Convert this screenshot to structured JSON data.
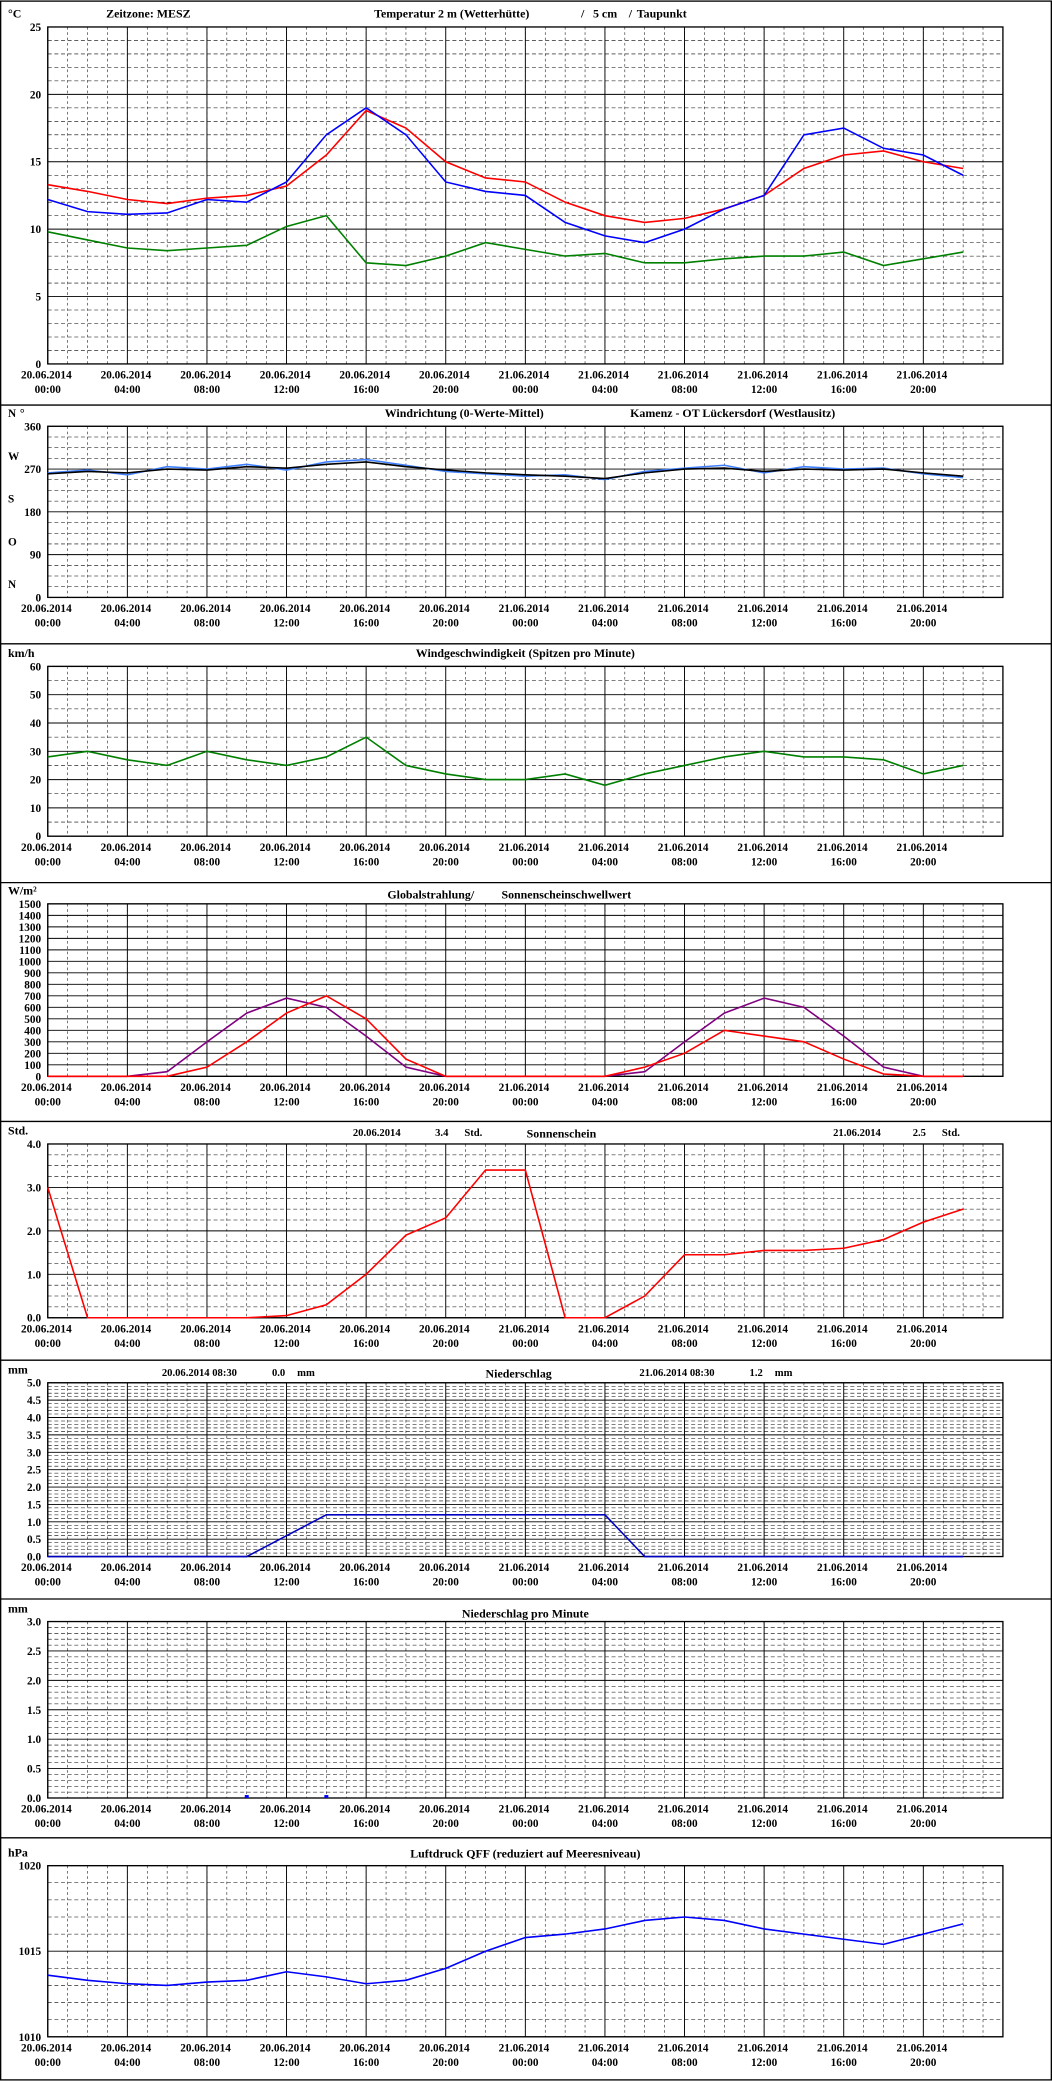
{
  "chart_data": [
    {
      "type": "line",
      "ylabel": "°C",
      "texts": [
        "Zeitzone: MESZ",
        "Temperatur 2 m (Wetterhütte)",
        "/",
        "5 cm",
        "/",
        "Taupunkt"
      ],
      "text_colors": [
        "#000000",
        "#ff0000",
        "#0000ff",
        "#0000ff",
        "#008000",
        "#008000"
      ],
      "x": [
        "20.06.2014 00:00",
        "20.06.2014 02:00",
        "20.06.2014 04:00",
        "20.06.2014 06:00",
        "20.06.2014 08:00",
        "20.06.2014 10:00",
        "20.06.2014 12:00",
        "20.06.2014 14:00",
        "20.06.2014 16:00",
        "20.06.2014 18:00",
        "20.06.2014 20:00",
        "20.06.2014 22:00",
        "21.06.2014 00:00",
        "21.06.2014 02:00",
        "21.06.2014 04:00",
        "21.06.2014 06:00",
        "21.06.2014 08:00",
        "21.06.2014 10:00",
        "21.06.2014 12:00",
        "21.06.2014 14:00",
        "21.06.2014 16:00",
        "21.06.2014 18:00",
        "21.06.2014 20:00",
        "21.06.2014 22:00"
      ],
      "xticks": [
        "20.06.2014 00:00",
        "20.06.2014 04:00",
        "20.06.2014 08:00",
        "20.06.2014 12:00",
        "20.06.2014 16:00",
        "20.06.2014 20:00",
        "21.06.2014 00:00",
        "21.06.2014 04:00",
        "21.06.2014 08:00",
        "21.06.2014 12:00",
        "21.06.2014 16:00",
        "21.06.2014 20:00"
      ],
      "ylim": [
        0,
        25
      ],
      "yticks": [
        0,
        5,
        10,
        15,
        20,
        25
      ],
      "series": [
        {
          "color": "#ff0000",
          "values": [
            13.3,
            12.8,
            12.2,
            11.9,
            12.3,
            12.5,
            13.2,
            15.5,
            18.8,
            17.5,
            15,
            13.8,
            13.5,
            12,
            11,
            10.5,
            10.8,
            11.5,
            12.5,
            14.5,
            15.5,
            15.8,
            15,
            14.5
          ]
        },
        {
          "color": "#0000ff",
          "values": [
            12.2,
            11.3,
            11.1,
            11.2,
            12.2,
            12,
            13.5,
            17,
            19,
            17,
            13.5,
            12.8,
            12.5,
            10.5,
            9.5,
            9,
            10,
            11.5,
            12.5,
            17,
            17.5,
            16,
            15.5,
            14
          ]
        },
        {
          "color": "#008000",
          "values": [
            9.8,
            9.2,
            8.6,
            8.4,
            8.6,
            8.8,
            10.2,
            11,
            7.5,
            7.3,
            8,
            9,
            8.5,
            8,
            8.2,
            7.5,
            7.5,
            7.8,
            8,
            8,
            8.3,
            7.3,
            7.8,
            8.3
          ]
        }
      ]
    },
    {
      "type": "line",
      "ylabel": "°",
      "texts": [
        "Windrichtung (0-Werte-Mittel)",
        "Kamenz - OT Lückersdorf (Westlausitz)"
      ],
      "text_colors": [
        "#3070ff",
        "#000000"
      ],
      "x": [
        "20.06.2014 00:00",
        "20.06.2014 02:00",
        "20.06.2014 04:00",
        "20.06.2014 06:00",
        "20.06.2014 08:00",
        "20.06.2014 10:00",
        "20.06.2014 12:00",
        "20.06.2014 14:00",
        "20.06.2014 16:00",
        "20.06.2014 18:00",
        "20.06.2014 20:00",
        "20.06.2014 22:00",
        "21.06.2014 00:00",
        "21.06.2014 02:00",
        "21.06.2014 04:00",
        "21.06.2014 06:00",
        "21.06.2014 08:00",
        "21.06.2014 10:00",
        "21.06.2014 12:00",
        "21.06.2014 14:00",
        "21.06.2014 16:00",
        "21.06.2014 18:00",
        "21.06.2014 20:00",
        "21.06.2014 22:00"
      ],
      "xticks": [
        "20.06.2014 00:00",
        "20.06.2014 04:00",
        "20.06.2014 08:00",
        "20.06.2014 12:00",
        "20.06.2014 16:00",
        "20.06.2014 20:00",
        "21.06.2014 00:00",
        "21.06.2014 04:00",
        "21.06.2014 08:00",
        "21.06.2014 12:00",
        "21.06.2014 16:00",
        "21.06.2014 20:00"
      ],
      "ylim": [
        0,
        360
      ],
      "yticks": [
        0,
        90,
        180,
        270,
        360
      ],
      "compass": [
        "N",
        "O",
        "S",
        "W",
        "N"
      ],
      "series": [
        {
          "color": "#4080ff",
          "values": [
            262,
            268,
            258,
            275,
            270,
            280,
            268,
            285,
            290,
            278,
            265,
            260,
            255,
            258,
            248,
            265,
            272,
            278,
            262,
            275,
            270,
            272,
            260,
            252
          ]
        },
        {
          "color": "#000000",
          "values": [
            260,
            265,
            262,
            270,
            268,
            275,
            272,
            280,
            285,
            275,
            268,
            262,
            258,
            255,
            250,
            262,
            270,
            272,
            265,
            270,
            268,
            270,
            262,
            255
          ]
        }
      ]
    },
    {
      "type": "line",
      "ylabel": "km/h",
      "texts": [
        "Windgeschwindigkeit (Spitzen pro Minute)"
      ],
      "text_colors": [
        "#000000"
      ],
      "x": [
        "20.06.2014 00:00",
        "20.06.2014 02:00",
        "20.06.2014 04:00",
        "20.06.2014 06:00",
        "20.06.2014 08:00",
        "20.06.2014 10:00",
        "20.06.2014 12:00",
        "20.06.2014 14:00",
        "20.06.2014 16:00",
        "20.06.2014 18:00",
        "20.06.2014 20:00",
        "20.06.2014 22:00",
        "21.06.2014 00:00",
        "21.06.2014 02:00",
        "21.06.2014 04:00",
        "21.06.2014 06:00",
        "21.06.2014 08:00",
        "21.06.2014 10:00",
        "21.06.2014 12:00",
        "21.06.2014 14:00",
        "21.06.2014 16:00",
        "21.06.2014 18:00",
        "21.06.2014 20:00",
        "21.06.2014 22:00"
      ],
      "xticks": [
        "20.06.2014 00:00",
        "20.06.2014 04:00",
        "20.06.2014 08:00",
        "20.06.2014 12:00",
        "20.06.2014 16:00",
        "20.06.2014 20:00",
        "21.06.2014 00:00",
        "21.06.2014 04:00",
        "21.06.2014 08:00",
        "21.06.2014 12:00",
        "21.06.2014 16:00",
        "21.06.2014 20:00"
      ],
      "ylim": [
        0,
        60
      ],
      "yticks": [
        0,
        10,
        20,
        30,
        40,
        50,
        60
      ],
      "series": [
        {
          "color": "#008000",
          "values": [
            28,
            30,
            27,
            25,
            30,
            27,
            25,
            28,
            35,
            25,
            22,
            20,
            20,
            22,
            18,
            22,
            25,
            28,
            30,
            28,
            28,
            27,
            22,
            25
          ]
        }
      ]
    },
    {
      "type": "line",
      "ylabel": "W/m²",
      "texts": [
        "Globalstrahlung/",
        "Sonnenscheinschwellwert"
      ],
      "text_colors": [
        "#000000",
        "#800080"
      ],
      "x": [
        "20.06.2014 00:00",
        "20.06.2014 02:00",
        "20.06.2014 04:00",
        "20.06.2014 06:00",
        "20.06.2014 08:00",
        "20.06.2014 10:00",
        "20.06.2014 12:00",
        "20.06.2014 14:00",
        "20.06.2014 16:00",
        "20.06.2014 18:00",
        "20.06.2014 20:00",
        "20.06.2014 22:00",
        "21.06.2014 00:00",
        "21.06.2014 02:00",
        "21.06.2014 04:00",
        "21.06.2014 06:00",
        "21.06.2014 08:00",
        "21.06.2014 10:00",
        "21.06.2014 12:00",
        "21.06.2014 14:00",
        "21.06.2014 16:00",
        "21.06.2014 18:00",
        "21.06.2014 20:00",
        "21.06.2014 22:00"
      ],
      "xticks": [
        "20.06.2014 00:00",
        "20.06.2014 04:00",
        "20.06.2014 08:00",
        "20.06.2014 12:00",
        "20.06.2014 16:00",
        "20.06.2014 20:00",
        "21.06.2014 00:00",
        "21.06.2014 04:00",
        "21.06.2014 08:00",
        "21.06.2014 12:00",
        "21.06.2014 16:00",
        "21.06.2014 20:00"
      ],
      "ylim": [
        0,
        1500
      ],
      "yticks": [
        0,
        100,
        200,
        300,
        400,
        500,
        600,
        700,
        800,
        900,
        1000,
        1100,
        1200,
        1300,
        1400,
        1500
      ],
      "series": [
        {
          "color": "#800080",
          "values": [
            0,
            0,
            0,
            40,
            300,
            550,
            680,
            600,
            350,
            80,
            0,
            0,
            0,
            0,
            0,
            40,
            300,
            550,
            680,
            600,
            350,
            80,
            0,
            0
          ]
        },
        {
          "color": "#ff0000",
          "values": [
            0,
            0,
            0,
            0,
            80,
            300,
            550,
            700,
            500,
            150,
            0,
            0,
            0,
            0,
            0,
            80,
            200,
            400,
            350,
            300,
            150,
            20,
            0,
            0
          ]
        }
      ]
    },
    {
      "type": "line",
      "ylabel": "Std.",
      "texts": [
        "20.06.2014",
        "3.4",
        "Std.",
        "Sonnenschein",
        "21.06.2014",
        "2.5",
        "Std."
      ],
      "text_colors": [
        "#000000",
        "#000000",
        "#000000",
        "#000000",
        "#000000",
        "#000000",
        "#000000"
      ],
      "x": [
        "20.06.2014 00:00",
        "20.06.2014 02:00",
        "20.06.2014 04:00",
        "20.06.2014 06:00",
        "20.06.2014 08:00",
        "20.06.2014 10:00",
        "20.06.2014 12:00",
        "20.06.2014 14:00",
        "20.06.2014 16:00",
        "20.06.2014 18:00",
        "20.06.2014 20:00",
        "20.06.2014 22:00",
        "21.06.2014 00:00",
        "21.06.2014 02:00",
        "21.06.2014 04:00",
        "21.06.2014 06:00",
        "21.06.2014 08:00",
        "21.06.2014 10:00",
        "21.06.2014 12:00",
        "21.06.2014 14:00",
        "21.06.2014 16:00",
        "21.06.2014 18:00",
        "21.06.2014 20:00",
        "21.06.2014 22:00"
      ],
      "xticks": [
        "20.06.2014 00:00",
        "20.06.2014 04:00",
        "20.06.2014 08:00",
        "20.06.2014 12:00",
        "20.06.2014 16:00",
        "20.06.2014 20:00",
        "21.06.2014 00:00",
        "21.06.2014 04:00",
        "21.06.2014 08:00",
        "21.06.2014 12:00",
        "21.06.2014 16:00",
        "21.06.2014 20:00"
      ],
      "ylim": [
        0,
        4
      ],
      "yticks": [
        {
          "value": 0,
          "label": "0.0"
        },
        {
          "value": 1,
          "label": "1.0"
        },
        {
          "value": 2,
          "label": "2.0"
        },
        {
          "value": 3,
          "label": "3.0"
        },
        {
          "value": 4,
          "label": "4.0"
        }
      ],
      "series": [
        {
          "color": "#ff0000",
          "values": [
            3,
            0,
            0,
            0,
            0,
            0,
            0.05,
            0.3,
            1,
            1.9,
            2.3,
            3.4,
            3.4,
            0,
            0,
            0.5,
            1.45,
            1.45,
            1.55,
            1.55,
            1.6,
            1.8,
            2.2,
            2.5
          ]
        }
      ]
    },
    {
      "type": "line",
      "ylabel": "mm",
      "texts": [
        "20.06.2014 08:30",
        "0.0",
        "mm",
        "Niederschlag",
        "21.06.2014 08:30",
        "1.2",
        "mm"
      ],
      "text_colors": [
        "#000000",
        "#000000",
        "#000000",
        "#000000",
        "#000000",
        "#000000",
        "#000000"
      ],
      "x": [
        "20.06.2014 00:00",
        "20.06.2014 02:00",
        "20.06.2014 04:00",
        "20.06.2014 06:00",
        "20.06.2014 08:00",
        "20.06.2014 10:00",
        "20.06.2014 12:00",
        "20.06.2014 14:00",
        "20.06.2014 16:00",
        "20.06.2014 18:00",
        "20.06.2014 20:00",
        "20.06.2014 22:00",
        "21.06.2014 00:00",
        "21.06.2014 02:00",
        "21.06.2014 04:00",
        "21.06.2014 06:00",
        "21.06.2014 08:00",
        "21.06.2014 10:00",
        "21.06.2014 12:00",
        "21.06.2014 14:00",
        "21.06.2014 16:00",
        "21.06.2014 18:00",
        "21.06.2014 20:00",
        "21.06.2014 22:00"
      ],
      "xticks": [
        "20.06.2014 00:00",
        "20.06.2014 04:00",
        "20.06.2014 08:00",
        "20.06.2014 12:00",
        "20.06.2014 16:00",
        "20.06.2014 20:00",
        "21.06.2014 00:00",
        "21.06.2014 04:00",
        "21.06.2014 08:00",
        "21.06.2014 12:00",
        "21.06.2014 16:00",
        "21.06.2014 20:00"
      ],
      "ylim": [
        0,
        5
      ],
      "yticks": [
        {
          "value": 0,
          "label": "0.0"
        },
        {
          "value": 0.5,
          "label": "0.5"
        },
        {
          "value": 1,
          "label": "1.0"
        },
        {
          "value": 1.5,
          "label": "1.5"
        },
        {
          "value": 2,
          "label": "2.0"
        },
        {
          "value": 2.5,
          "label": "2.5"
        },
        {
          "value": 3,
          "label": "3.0"
        },
        {
          "value": 3.5,
          "label": "3.5"
        },
        {
          "value": 4,
          "label": "4.0"
        },
        {
          "value": 4.5,
          "label": "4.5"
        },
        {
          "value": 5,
          "label": "5.0"
        }
      ],
      "series": [
        {
          "color": "#0000c0",
          "values": [
            0,
            0,
            0,
            0,
            0,
            0,
            0.6,
            1.2,
            1.2,
            1.2,
            1.2,
            1.2,
            1.2,
            1.2,
            1.2,
            0,
            0,
            0,
            0,
            0,
            0,
            0,
            0,
            0
          ]
        }
      ]
    },
    {
      "type": "bar",
      "ylabel": "mm",
      "texts": [
        "Niederschlag pro Minute"
      ],
      "text_colors": [
        "#000000"
      ],
      "x": [
        "20.06.2014 00:00",
        "20.06.2014 02:00",
        "20.06.2014 04:00",
        "20.06.2014 06:00",
        "20.06.2014 08:00",
        "20.06.2014 10:00",
        "20.06.2014 12:00",
        "20.06.2014 14:00",
        "20.06.2014 16:00",
        "20.06.2014 18:00",
        "20.06.2014 20:00",
        "20.06.2014 22:00",
        "21.06.2014 00:00",
        "21.06.2014 02:00",
        "21.06.2014 04:00",
        "21.06.2014 06:00",
        "21.06.2014 08:00",
        "21.06.2014 10:00",
        "21.06.2014 12:00",
        "21.06.2014 14:00",
        "21.06.2014 16:00",
        "21.06.2014 18:00",
        "21.06.2014 20:00",
        "21.06.2014 22:00"
      ],
      "xticks": [
        "20.06.2014 00:00",
        "20.06.2014 04:00",
        "20.06.2014 08:00",
        "20.06.2014 12:00",
        "20.06.2014 16:00",
        "20.06.2014 20:00",
        "21.06.2014 00:00",
        "21.06.2014 04:00",
        "21.06.2014 08:00",
        "21.06.2014 12:00",
        "21.06.2014 16:00",
        "21.06.2014 20:00"
      ],
      "ylim": [
        0,
        3
      ],
      "yticks": [
        {
          "value": 0,
          "label": "0.0"
        },
        {
          "value": 0.5,
          "label": "0.5"
        },
        {
          "value": 1,
          "label": "1.0"
        },
        {
          "value": 1.5,
          "label": "1.5"
        },
        {
          "value": 2,
          "label": "2.0"
        },
        {
          "value": 2.5,
          "label": "2.5"
        },
        {
          "value": 3,
          "label": "3.0"
        }
      ],
      "series": [
        {
          "color": "#0000ff",
          "values": [
            0,
            0,
            0,
            0,
            0,
            0.05,
            0,
            0.05,
            0,
            0,
            0,
            0,
            0,
            0,
            0,
            0,
            0,
            0,
            0,
            0,
            0,
            0,
            0,
            0
          ]
        }
      ]
    },
    {
      "type": "line",
      "ylabel": "hPa",
      "texts": [
        "Luftdruck QFF (reduziert auf Meeresniveau)"
      ],
      "text_colors": [
        "#000000"
      ],
      "x": [
        "20.06.2014 00:00",
        "20.06.2014 02:00",
        "20.06.2014 04:00",
        "20.06.2014 06:00",
        "20.06.2014 08:00",
        "20.06.2014 10:00",
        "20.06.2014 12:00",
        "20.06.2014 14:00",
        "20.06.2014 16:00",
        "20.06.2014 18:00",
        "20.06.2014 20:00",
        "20.06.2014 22:00",
        "21.06.2014 00:00",
        "21.06.2014 02:00",
        "21.06.2014 04:00",
        "21.06.2014 06:00",
        "21.06.2014 08:00",
        "21.06.2014 10:00",
        "21.06.2014 12:00",
        "21.06.2014 14:00",
        "21.06.2014 16:00",
        "21.06.2014 18:00",
        "21.06.2014 20:00",
        "21.06.2014 22:00"
      ],
      "xticks": [
        "20.06.2014 00:00",
        "20.06.2014 04:00",
        "20.06.2014 08:00",
        "20.06.2014 12:00",
        "20.06.2014 16:00",
        "20.06.2014 20:00",
        "21.06.2014 00:00",
        "21.06.2014 04:00",
        "21.06.2014 08:00",
        "21.06.2014 12:00",
        "21.06.2014 16:00",
        "21.06.2014 20:00"
      ],
      "ylim": [
        1010,
        1020
      ],
      "yticks": [
        1010,
        1015,
        1020
      ],
      "series": [
        {
          "color": "#0000ff",
          "values": [
            1013.6,
            1013.3,
            1013.1,
            1013,
            1013.2,
            1013.3,
            1013.8,
            1013.5,
            1013.1,
            1013.3,
            1014,
            1015,
            1015.8,
            1016,
            1016.3,
            1016.8,
            1017,
            1016.8,
            1016.3,
            1016,
            1015.7,
            1015.4,
            1016,
            1016.6
          ]
        }
      ]
    }
  ]
}
